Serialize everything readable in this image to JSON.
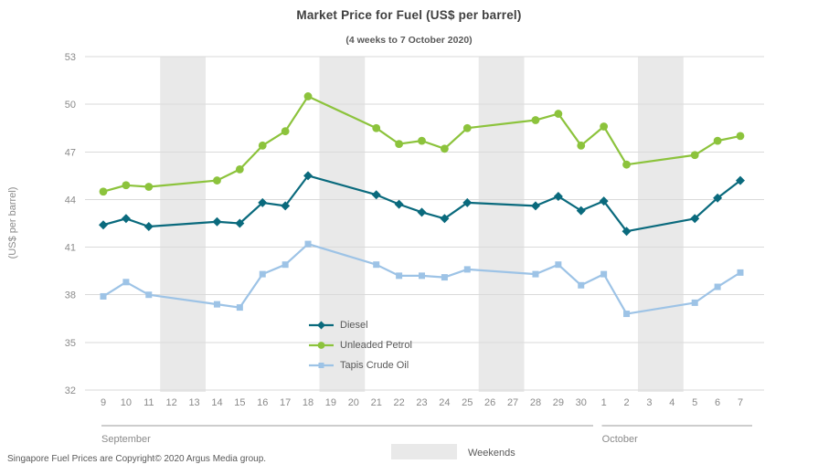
{
  "footer": {
    "copyright": "Singapore Fuel Prices are Copyright© 2020 Argus Media group."
  },
  "chart_data": {
    "type": "line",
    "title": "Market Price for Fuel (US$ per barrel)",
    "subtitle": "(4 weeks to 7 October 2020)",
    "ylabel": "(US$ per barrel)",
    "ylim": [
      32,
      53
    ],
    "yticks": [
      32,
      35,
      38,
      41,
      44,
      47,
      50,
      53
    ],
    "grid": true,
    "legend_position": "inside-lower-left",
    "categories": [
      "9",
      "10",
      "11",
      "12",
      "13",
      "14",
      "15",
      "16",
      "17",
      "18",
      "19",
      "20",
      "21",
      "22",
      "23",
      "24",
      "25",
      "26",
      "27",
      "28",
      "29",
      "30",
      "1",
      "2",
      "3",
      "4",
      "5",
      "6",
      "7"
    ],
    "months": [
      {
        "label": "September",
        "start": 0,
        "end": 21
      },
      {
        "label": "October",
        "start": 22,
        "end": 28
      }
    ],
    "weekend_bands": [
      [
        3,
        4
      ],
      [
        10,
        11
      ],
      [
        17,
        18
      ],
      [
        24,
        25
      ]
    ],
    "weekend_key_label": "Weekends",
    "series": [
      {
        "name": "Diesel",
        "marker": "diamond",
        "color": "#0A6A7D",
        "values": [
          42.4,
          42.8,
          42.3,
          null,
          null,
          42.6,
          42.5,
          43.8,
          43.6,
          45.5,
          null,
          null,
          44.3,
          43.7,
          43.2,
          42.8,
          43.8,
          null,
          null,
          43.6,
          44.2,
          43.3,
          43.9,
          42.0,
          null,
          null,
          42.8,
          44.1,
          45.2
        ]
      },
      {
        "name": "Unleaded Petrol",
        "marker": "circle",
        "color": "#8CC33C",
        "values": [
          44.5,
          44.9,
          44.8,
          null,
          null,
          45.2,
          45.9,
          47.4,
          48.3,
          50.5,
          null,
          null,
          48.5,
          47.5,
          47.7,
          47.2,
          48.5,
          null,
          null,
          49.0,
          49.4,
          47.4,
          48.6,
          46.2,
          null,
          null,
          46.8,
          47.7,
          48.0
        ]
      },
      {
        "name": "Tapis Crude Oil",
        "marker": "square",
        "color": "#9DC3E6",
        "values": [
          37.9,
          38.8,
          38.0,
          null,
          null,
          37.4,
          37.2,
          39.3,
          39.9,
          41.2,
          null,
          null,
          39.9,
          39.2,
          39.2,
          39.1,
          39.6,
          null,
          null,
          39.3,
          39.9,
          38.6,
          39.3,
          36.8,
          null,
          null,
          37.5,
          38.5,
          39.4
        ]
      }
    ],
    "colors": {
      "weekend_band": "#e9e9e9",
      "gridline": "#dadada",
      "tick_text": "#8a8a8a",
      "month_line": "#9b9b9b"
    }
  }
}
